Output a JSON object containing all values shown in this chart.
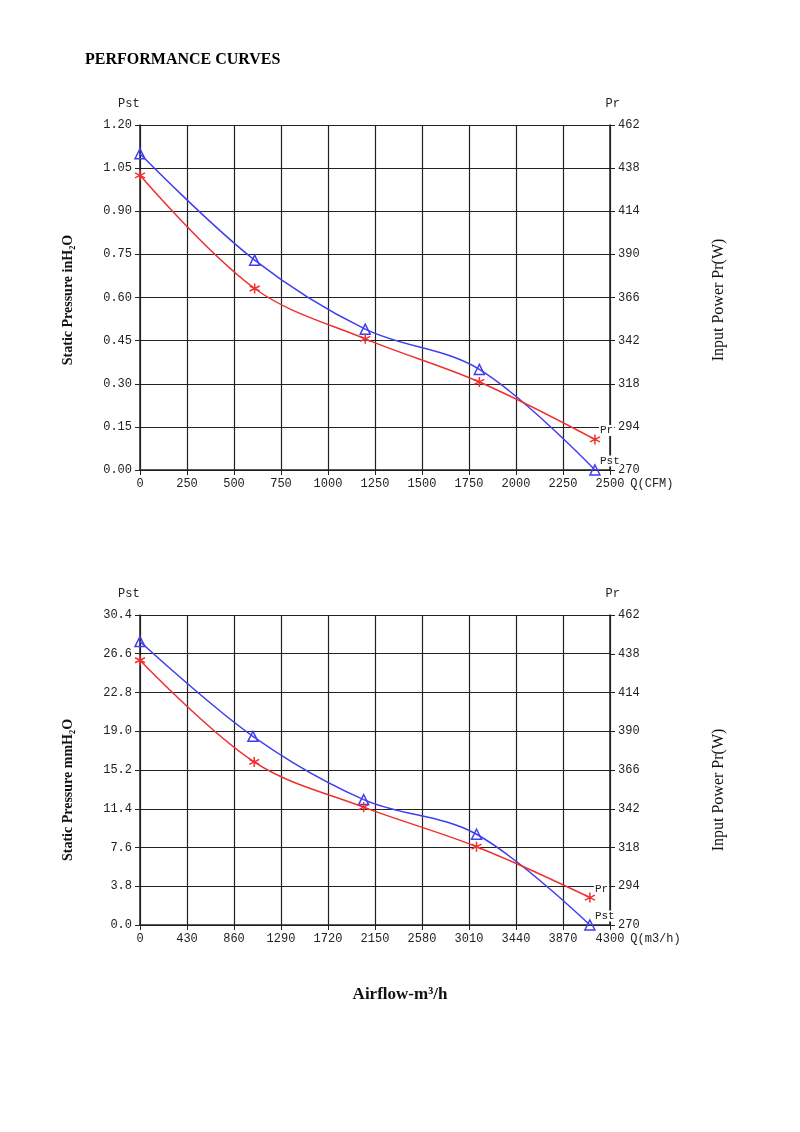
{
  "chart_data": [
    {
      "type": "line",
      "title": "PERFORMANCE CURVES",
      "xlabel": "Q(CFM)",
      "ylabel": "Static Pressure inH₂O",
      "y2label": "Input Power Pr(W)",
      "annotations": [
        "Pst",
        "Pr"
      ],
      "series": [
        {
          "name": "Pst",
          "color": "#3f3ff0",
          "marker": "triangle",
          "x": [
            0,
            610,
            1198,
            1805,
            2420
          ],
          "values": [
            1.1,
            0.73,
            0.49,
            0.35,
            0.0
          ]
        },
        {
          "name": "Pr",
          "color": "#f03030",
          "marker": "cross",
          "axis": "y2",
          "x": [
            0,
            610,
            1198,
            1805,
            2420
          ],
          "values": [
            434,
            371,
            343,
            319,
            287
          ]
        }
      ],
      "xlim": [
        0,
        2500
      ],
      "xticks": [
        0,
        250,
        500,
        750,
        1000,
        1250,
        1500,
        1750,
        2000,
        2250,
        2500
      ],
      "ylim": [
        0,
        1.2
      ],
      "yticks": [
        {
          "value": 0,
          "label": "0.00"
        },
        0.15,
        {
          "value": 0.3,
          "label": "0.30"
        },
        0.45,
        {
          "value": 0.6,
          "label": "0.60"
        },
        0.75,
        {
          "value": 0.9,
          "label": "0.90"
        },
        1.05,
        {
          "value": 1.2,
          "label": "1.20"
        }
      ],
      "y2lim": [
        270,
        462
      ],
      "y2ticks": [
        270,
        294,
        318,
        342,
        366,
        390,
        414,
        438,
        462
      ],
      "grid": true,
      "legend": false,
      "line_style": "solid"
    },
    {
      "type": "line",
      "xlabel": "Q(m3/h)",
      "ylabel": "Static Pressure mmH₂O",
      "y2label": "Input Power Pr(W)",
      "annotations": [
        "Pst",
        "Pr",
        "Airflow-m³/h"
      ],
      "series": [
        {
          "name": "Pst",
          "color": "#3f3ff0",
          "marker": "triangle",
          "x": [
            0,
            1033,
            2046,
            3079,
            4116
          ],
          "values": [
            27.8,
            18.5,
            12.3,
            8.9,
            0.0
          ]
        },
        {
          "name": "Pr",
          "color": "#f03030",
          "marker": "cross",
          "axis": "y2",
          "x": [
            0,
            1045,
            2046,
            3079,
            4116
          ],
          "values": [
            434,
            371,
            343,
            318.5,
            287
          ]
        }
      ],
      "xlim": [
        0,
        4300
      ],
      "xticks": [
        0,
        430,
        860,
        1290,
        1720,
        2150,
        2580,
        3010,
        3440,
        3870,
        4300
      ],
      "ylim": [
        0,
        30.4
      ],
      "yticks": [
        {
          "value": 0,
          "label": "0.0"
        },
        3.8,
        7.6,
        11.4,
        15.2,
        {
          "value": 19,
          "label": "19.0"
        },
        22.8,
        26.6,
        30.4
      ],
      "y2lim": [
        270,
        462
      ],
      "y2ticks": [
        270,
        294,
        318,
        342,
        366,
        390,
        414,
        438,
        462
      ],
      "grid": true,
      "legend": false,
      "line_style": "solid"
    }
  ]
}
